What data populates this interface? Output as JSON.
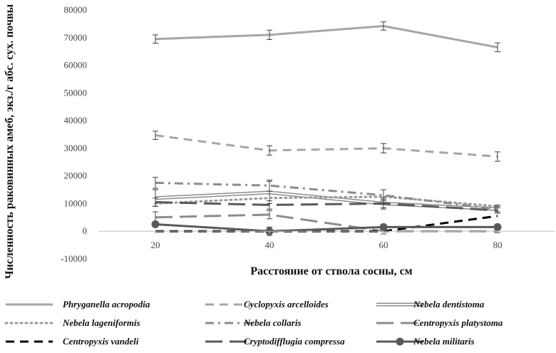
{
  "chart_data": {
    "type": "line",
    "x": [
      20,
      40,
      60,
      80
    ],
    "xlabel": "Расстояние от ствола сосны, см",
    "ylabel": "Численность раковинных амеб, экз./г абс. сух. почвы",
    "ylim": [
      -10000,
      80000
    ],
    "yticks": [
      -10000,
      0,
      10000,
      20000,
      30000,
      40000,
      50000,
      60000,
      70000,
      80000
    ],
    "yticklabels": [
      "-10000",
      "0",
      "10000",
      "20000",
      "30000",
      "40000",
      "50000",
      "60000",
      "70000",
      "80000"
    ],
    "xticklabels": [
      "20",
      "40",
      "60",
      "80"
    ],
    "grid": false,
    "legend_position": "bottom",
    "series": [
      {
        "name": "Phryganella acropodia",
        "values": [
          69500,
          71000,
          74200,
          66500
        ],
        "errors": [
          1500,
          1700,
          1500,
          1600
        ],
        "color": "#a6a6a6",
        "style": "solid"
      },
      {
        "name": "Cyclopyxis arcelloides",
        "values": [
          34700,
          29200,
          30000,
          27000
        ],
        "errors": [
          1500,
          1700,
          1700,
          1700
        ],
        "color": "#a6a6a6",
        "style": "dash"
      },
      {
        "name": "Nebela dentistoma",
        "values": [
          12000,
          14000,
          10000,
          8000
        ],
        "errors": [
          3000,
          4000,
          2000,
          1500
        ],
        "color": "#8c8c8c",
        "style": "double"
      },
      {
        "name": "Nebela lageniformis",
        "values": [
          10000,
          12000,
          12500,
          9000
        ],
        "errors": [
          0,
          0,
          0,
          0
        ],
        "color": "#9a9a9a",
        "style": "dot"
      },
      {
        "name": "Nebela collaris",
        "values": [
          17500,
          16500,
          13000,
          8000
        ],
        "errors": [
          2000,
          2000,
          2000,
          1000
        ],
        "color": "#8c8c8c",
        "style": "dashdot"
      },
      {
        "name": "Centropyxis platystoma",
        "values": [
          5000,
          6000,
          0,
          0
        ],
        "errors": [
          2000,
          1500,
          1000,
          500
        ],
        "color": "#8c8c8c",
        "style": "longdash"
      },
      {
        "name": "Centropyxis vandeli",
        "values": [
          0,
          0,
          0,
          5500
        ],
        "errors": [
          0,
          0,
          0,
          0
        ],
        "color": "#000000",
        "style": "dash"
      },
      {
        "name": "Cryptodifflugia compressa",
        "values": [
          10500,
          9500,
          10000,
          7500
        ],
        "errors": [
          1500,
          1500,
          1500,
          1000
        ],
        "color": "#595959",
        "style": "longdash"
      },
      {
        "name": "Nebela militaris",
        "values": [
          2500,
          0,
          1500,
          1500
        ],
        "errors": [
          0,
          1500,
          0,
          0
        ],
        "color": "#595959",
        "style": "marker"
      }
    ]
  }
}
